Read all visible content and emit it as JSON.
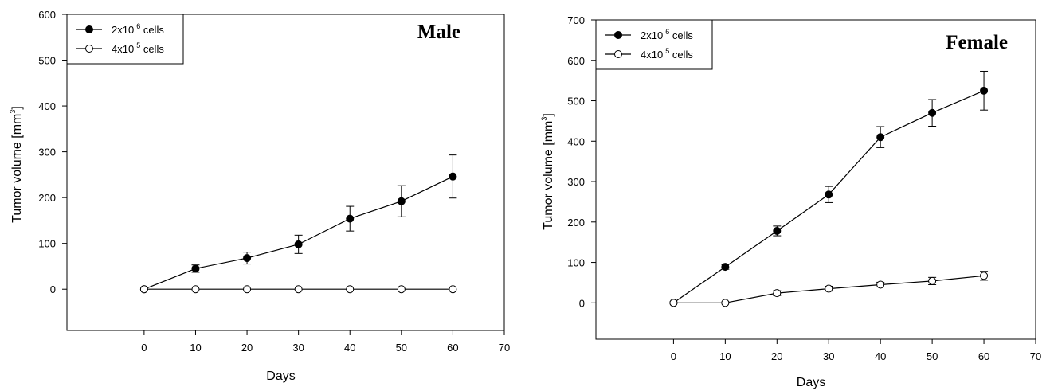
{
  "figure": {
    "colors": {
      "line": "#000000",
      "filled_marker": "#000000",
      "open_marker": "#ffffff",
      "background": "#ffffff"
    }
  },
  "chart_data": [
    {
      "type": "line",
      "title": "Male",
      "xlabel": "Days",
      "ylabel_base": "Tumor volume [mm",
      "ylabel_sup": "3",
      "ylabel_end": "]",
      "xlim": [
        -15,
        70
      ],
      "ylim": [
        -90,
        600
      ],
      "x_ticks": [
        0,
        10,
        20,
        30,
        40,
        50,
        60,
        70
      ],
      "y_ticks": [
        0,
        100,
        200,
        300,
        400,
        500,
        600
      ],
      "legend": {
        "position": "top-left"
      },
      "series": [
        {
          "name_base": "2x10",
          "name_sup": "6",
          "name_end": " cells",
          "marker": "filled-circle",
          "x": [
            0,
            10,
            20,
            30,
            40,
            50,
            60
          ],
          "y": [
            0,
            45,
            68,
            98,
            154,
            192,
            246
          ],
          "err": [
            0,
            8,
            13,
            20,
            27,
            34,
            47
          ]
        },
        {
          "name_base": "4x10",
          "name_sup": "5",
          "name_end": " cells",
          "marker": "open-circle",
          "x": [
            0,
            10,
            20,
            30,
            40,
            50,
            60
          ],
          "y": [
            0,
            0,
            0,
            0,
            0,
            0,
            0
          ],
          "err": [
            0,
            0,
            0,
            0,
            0,
            0,
            0
          ]
        }
      ]
    },
    {
      "type": "line",
      "title": "Female",
      "xlabel": "Days",
      "ylabel_base": "Tumor volume [mm",
      "ylabel_sup": "3",
      "ylabel_end": "]",
      "xlim": [
        -15,
        70
      ],
      "ylim": [
        -90,
        700
      ],
      "x_ticks": [
        0,
        10,
        20,
        30,
        40,
        50,
        60,
        70
      ],
      "y_ticks": [
        0,
        100,
        200,
        300,
        400,
        500,
        600,
        700
      ],
      "legend": {
        "position": "top-left"
      },
      "series": [
        {
          "name_base": "2x10",
          "name_sup": "6",
          "name_end": " cells",
          "marker": "filled-circle",
          "x": [
            0,
            10,
            20,
            30,
            40,
            50,
            60
          ],
          "y": [
            0,
            89,
            178,
            268,
            410,
            470,
            525
          ],
          "err": [
            0,
            6,
            12,
            20,
            26,
            33,
            48
          ]
        },
        {
          "name_base": "4x10",
          "name_sup": "5",
          "name_end": " cells",
          "marker": "open-circle",
          "x": [
            0,
            10,
            20,
            30,
            40,
            50,
            60
          ],
          "y": [
            0,
            0,
            24,
            35,
            45,
            54,
            67
          ],
          "err": [
            0,
            0,
            6,
            6,
            6,
            9,
            11
          ]
        }
      ]
    }
  ]
}
